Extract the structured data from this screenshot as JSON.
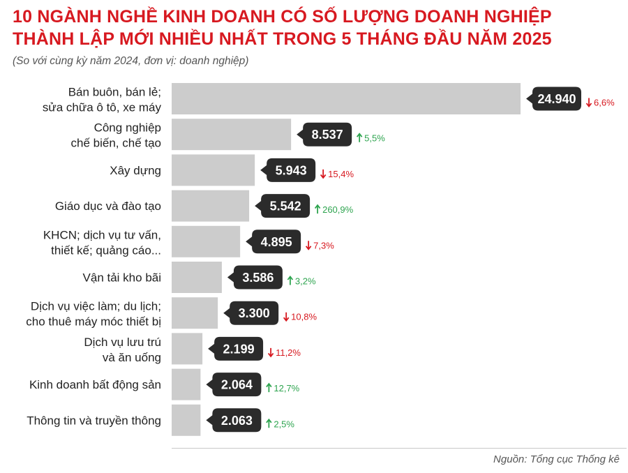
{
  "title_line1": "10 NGÀNH NGHỀ KINH DOANH CÓ SỐ LƯỢNG DOANH NGHIỆP",
  "title_line2": "THÀNH LẬP MỚI NHIỀU NHẤT TRONG 5 THÁNG ĐẦU NĂM 2025",
  "subtitle": "(So với cùng kỳ năm 2024, đơn vị: doanh nghiệp)",
  "source": "Nguồn: Tổng cục Thống kê",
  "colors": {
    "title": "#d71920",
    "bar": "#cccccc",
    "value_badge": "#2b2b2b",
    "increase": "#2ea44f",
    "decrease": "#d71920"
  },
  "chart_data": {
    "type": "bar",
    "orientation": "horizontal",
    "categories": [
      [
        "Bán buôn, bán lẻ;",
        "sửa chữa ô tô, xe máy"
      ],
      [
        "Công nghiệp",
        "chế biến, chế tạo"
      ],
      [
        "Xây dựng"
      ],
      [
        "Giáo dục và đào tạo"
      ],
      [
        "KHCN; dịch vụ tư vấn,",
        "thiết kế; quảng cáo..."
      ],
      [
        "Vận tải kho bãi"
      ],
      [
        "Dịch vụ việc làm; du lịch;",
        "cho thuê máy móc thiết bị"
      ],
      [
        "Dịch vụ lưu trú",
        "và ăn uống"
      ],
      [
        "Kinh doanh bất động sản"
      ],
      [
        "Thông tin và truyền thông"
      ]
    ],
    "values": [
      24940,
      8537,
      5943,
      5542,
      4895,
      3586,
      3300,
      2199,
      2064,
      2063
    ],
    "value_labels": [
      "24.940",
      "8.537",
      "5.943",
      "5.542",
      "4.895",
      "3.586",
      "3.300",
      "2.199",
      "2.064",
      "2.063"
    ],
    "changes": [
      {
        "direction": "down",
        "label": "6,6%"
      },
      {
        "direction": "up",
        "label": "5,5%"
      },
      {
        "direction": "down",
        "label": "15,4%"
      },
      {
        "direction": "up",
        "label": "260,9%"
      },
      {
        "direction": "down",
        "label": "7,3%"
      },
      {
        "direction": "up",
        "label": "3,2%"
      },
      {
        "direction": "down",
        "label": "10,8%"
      },
      {
        "direction": "down",
        "label": "11,2%"
      },
      {
        "direction": "up",
        "label": "12,7%"
      },
      {
        "direction": "up",
        "label": "2,5%"
      }
    ],
    "xlim": [
      0,
      24940
    ],
    "grid": false,
    "legend": "none"
  }
}
